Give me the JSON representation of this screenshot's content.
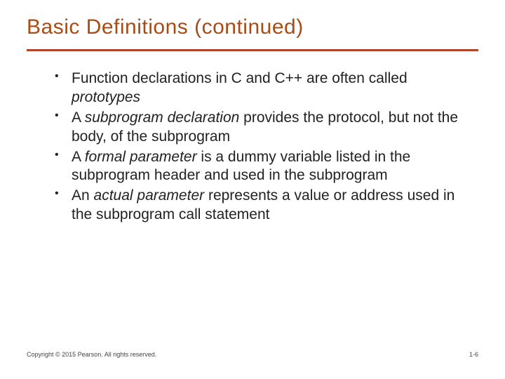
{
  "title": {
    "text": "Basic Definitions (continued)",
    "color": "#a94c14",
    "fontsize": 30
  },
  "rule": {
    "color": "#b0452a",
    "height": 3
  },
  "bullets": [
    {
      "pre": "Function declarations in C and C++ are often called ",
      "em": "prototypes",
      "post": ""
    },
    {
      "pre": "A ",
      "em": "subprogram declaration",
      "post": " provides the protocol, but not the body, of the subprogram"
    },
    {
      "pre": "A ",
      "em": "formal parameter",
      "post": " is a dummy variable listed in the subprogram header and used in the subprogram"
    },
    {
      "pre": "An ",
      "em": "actual parameter",
      "post": " represents a value or address used in the subprogram call statement"
    }
  ],
  "footer": {
    "copyright": "Copyright © 2015 Pearson. All rights reserved.",
    "page": "1-6",
    "fontsize": 9,
    "color": "#444"
  }
}
